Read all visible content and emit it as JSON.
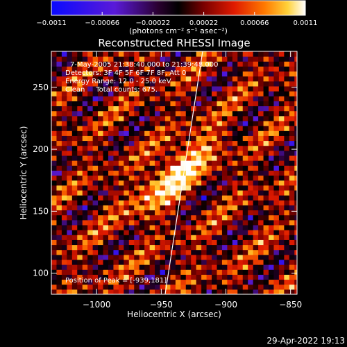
{
  "chart_data": {
    "type": "heatmap",
    "title": "Reconstructed RHESSI Image",
    "xlabel": "Heliocentric X (arcsec)",
    "ylabel": "Heliocentric Y (arcsec)",
    "xlim": [
      -1035,
      -845
    ],
    "ylim": [
      83,
      279
    ],
    "x_ticks": [
      -1000,
      -950,
      -900,
      -850
    ],
    "x_tick_labels": [
      "−1000",
      "−950",
      "−900",
      "−850"
    ],
    "y_ticks": [
      100,
      150,
      200,
      250
    ],
    "y_tick_labels": [
      "100",
      "150",
      "200",
      "250"
    ],
    "colorbar": {
      "range": [
        -0.0011,
        0.0011
      ],
      "ticks": [
        -0.0011,
        -0.00066,
        -0.00022,
        0.00022,
        0.00066,
        0.0011
      ],
      "tick_labels": [
        "−0.0011",
        "−0.00066",
        "−0.00022",
        "0.00022",
        "0.00066",
        "0.0011"
      ],
      "unit_label": "(photons cm⁻² s⁻¹ asec⁻²)",
      "colormap": [
        "#0a0aff",
        "#5a1ad8",
        "#2a0030",
        "#000000",
        "#7a0000",
        "#e01a00",
        "#ff7a00",
        "#ffd23a",
        "#ffffff"
      ]
    },
    "annotations": {
      "time_range": "7-May-2005 21:38:40.000 to 21:39:48.000",
      "detectors": "Detectors: 3F 4F 5F 6F 7F 8F, Att 0",
      "energy_range": "Energy Range: 12.0 - 25.0 keV",
      "clean_counts": "Clean     Total counts: 675.",
      "peak_position": "Position of Peak = [-939,181]"
    },
    "peak": {
      "x": -939,
      "y": 181
    },
    "limb_line": [
      {
        "x": -947,
        "y": 83
      },
      {
        "x": -918,
        "y": 279
      }
    ]
  },
  "footer": {
    "timestamp": "29-Apr-2022 19:13"
  }
}
